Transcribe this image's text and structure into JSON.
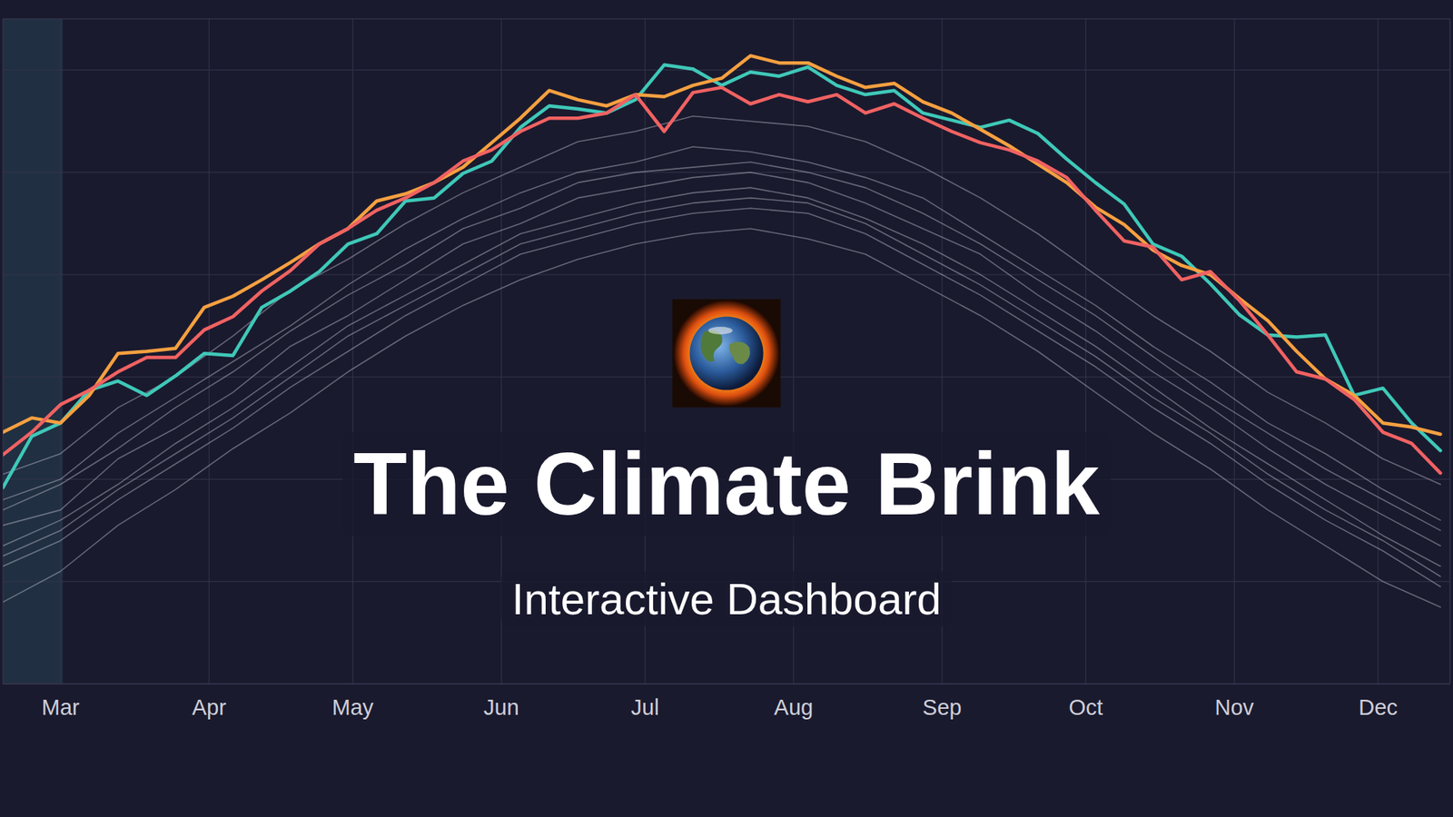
{
  "chart_data": {
    "type": "line",
    "title": "The Climate Brink",
    "subtitle": "Interactive Dashboard",
    "xlim": [
      48,
      350
    ],
    "xticks": [
      {
        "value": 60,
        "label": "Mar"
      },
      {
        "value": 91,
        "label": "Apr"
      },
      {
        "value": 121,
        "label": "May"
      },
      {
        "value": 152,
        "label": "Jun"
      },
      {
        "value": 182,
        "label": "Jul"
      },
      {
        "value": 213,
        "label": "Aug"
      },
      {
        "value": 244,
        "label": "Sep"
      },
      {
        "value": 274,
        "label": "Oct"
      },
      {
        "value": 305,
        "label": "Nov"
      },
      {
        "value": 335,
        "label": "Dec"
      }
    ],
    "ylim": [
      0,
      6.5
    ],
    "yticks": [
      0,
      1,
      2,
      3,
      4,
      5,
      6
    ],
    "grid": true,
    "tick_labels": "x",
    "series": [
      {
        "color": "#d9d9e6",
        "x": [
          48,
          60,
          72,
          84,
          96,
          108,
          120,
          132,
          144,
          156,
          168,
          180,
          192,
          204,
          216,
          228,
          240,
          252,
          264,
          276,
          288,
          300,
          312,
          324,
          336,
          348
        ],
        "values": [
          2.05,
          2.25,
          2.7,
          3.0,
          3.4,
          3.85,
          4.15,
          4.5,
          4.8,
          5.05,
          5.3,
          5.4,
          5.55,
          5.5,
          5.45,
          5.3,
          5.05,
          4.75,
          4.4,
          4.0,
          3.6,
          3.25,
          2.85,
          2.55,
          2.2,
          1.95
        ]
      },
      {
        "color": "#d9d9e6",
        "x": [
          48,
          60,
          72,
          84,
          96,
          108,
          120,
          132,
          144,
          156,
          168,
          180,
          192,
          204,
          216,
          228,
          240,
          252,
          264,
          276,
          288,
          300,
          312,
          324,
          336,
          348
        ],
        "values": [
          1.8,
          2.0,
          2.45,
          2.8,
          3.15,
          3.5,
          3.9,
          4.25,
          4.55,
          4.8,
          5.0,
          5.1,
          5.25,
          5.2,
          5.1,
          4.95,
          4.75,
          4.4,
          4.05,
          3.7,
          3.3,
          2.95,
          2.55,
          2.25,
          1.9,
          1.6
        ]
      },
      {
        "color": "#d9d9e6",
        "x": [
          48,
          60,
          72,
          84,
          96,
          108,
          120,
          132,
          144,
          156,
          168,
          180,
          192,
          204,
          216,
          228,
          240,
          252,
          264,
          276,
          288,
          300,
          312,
          324,
          336,
          348
        ],
        "values": [
          1.55,
          1.7,
          2.2,
          2.5,
          2.85,
          3.3,
          3.6,
          3.95,
          4.3,
          4.5,
          4.75,
          4.85,
          4.95,
          5.0,
          4.9,
          4.7,
          4.45,
          4.2,
          3.8,
          3.45,
          3.05,
          2.7,
          2.3,
          1.95,
          1.65,
          1.35
        ]
      },
      {
        "color": "#d9d9e6",
        "x": [
          48,
          60,
          72,
          84,
          96,
          108,
          120,
          132,
          144,
          156,
          168,
          180,
          192,
          204,
          216,
          228,
          240,
          252,
          264,
          276,
          288,
          300,
          312,
          324,
          336,
          348
        ],
        "values": [
          1.35,
          1.6,
          1.95,
          2.35,
          2.7,
          3.1,
          3.5,
          3.8,
          4.1,
          4.4,
          4.55,
          4.7,
          4.8,
          4.85,
          4.75,
          4.55,
          4.3,
          4.0,
          3.65,
          3.3,
          2.9,
          2.5,
          2.15,
          1.8,
          1.45,
          1.15
        ]
      },
      {
        "color": "#d9d9e6",
        "x": [
          48,
          60,
          72,
          84,
          96,
          108,
          120,
          132,
          144,
          156,
          168,
          180,
          192,
          204,
          216,
          228,
          240,
          252,
          264,
          276,
          288,
          300,
          312,
          324,
          336,
          348
        ],
        "values": [
          1.15,
          1.4,
          1.8,
          2.15,
          2.5,
          2.9,
          3.25,
          3.6,
          3.9,
          4.2,
          4.35,
          4.5,
          4.6,
          4.65,
          4.6,
          4.4,
          4.1,
          3.8,
          3.45,
          3.1,
          2.7,
          2.35,
          1.95,
          1.6,
          1.3,
          0.95
        ]
      },
      {
        "color": "#d9d9e6",
        "x": [
          48,
          60,
          72,
          84,
          96,
          108,
          120,
          132,
          144,
          156,
          168,
          180,
          192,
          204,
          216,
          228,
          240,
          252,
          264,
          276,
          288,
          300,
          312,
          324,
          336,
          348
        ],
        "values": [
          0.8,
          1.1,
          1.55,
          1.9,
          2.3,
          2.65,
          3.05,
          3.4,
          3.7,
          3.95,
          4.15,
          4.3,
          4.4,
          4.45,
          4.35,
          4.2,
          3.9,
          3.6,
          3.25,
          2.85,
          2.45,
          2.1,
          1.7,
          1.35,
          1.0,
          0.75
        ]
      },
      {
        "color": "#d9d9e6",
        "x": [
          48,
          60,
          72,
          84,
          96,
          108,
          120,
          132,
          144,
          156,
          168,
          180,
          192,
          204,
          216,
          228,
          240,
          252,
          264,
          276,
          288,
          300,
          312,
          324,
          336,
          348
        ],
        "values": [
          1.7,
          1.95,
          2.3,
          2.7,
          3.05,
          3.45,
          3.8,
          4.1,
          4.45,
          4.65,
          4.9,
          5.0,
          5.05,
          5.1,
          5.0,
          4.85,
          4.6,
          4.3,
          3.95,
          3.6,
          3.2,
          2.8,
          2.45,
          2.1,
          1.8,
          1.5
        ]
      },
      {
        "color": "#d9d9e6",
        "x": [
          48,
          60,
          72,
          84,
          96,
          108,
          120,
          132,
          144,
          156,
          168,
          180,
          192,
          204,
          216,
          228,
          240,
          252,
          264,
          276,
          288,
          300,
          312,
          324,
          336,
          348
        ],
        "values": [
          1.25,
          1.5,
          1.9,
          2.25,
          2.6,
          3.0,
          3.4,
          3.7,
          4.0,
          4.3,
          4.45,
          4.6,
          4.7,
          4.75,
          4.7,
          4.5,
          4.2,
          3.9,
          3.55,
          3.2,
          2.8,
          2.45,
          2.05,
          1.7,
          1.4,
          1.05
        ]
      },
      {
        "color": "#3fc8b8",
        "x": [
          48,
          54,
          60,
          66,
          72,
          78,
          84,
          90,
          96,
          102,
          108,
          114,
          120,
          126,
          132,
          138,
          144,
          150,
          156,
          162,
          168,
          174,
          180,
          186,
          192,
          198,
          204,
          210,
          216,
          222,
          228,
          234,
          240,
          246,
          252,
          258,
          264,
          270,
          276,
          282,
          288,
          294,
          300,
          306,
          312,
          318,
          324,
          330,
          336,
          342,
          348
        ],
        "values": [
          1.92,
          2.42,
          2.55,
          2.87,
          2.96,
          2.82,
          3.01,
          3.23,
          3.21,
          3.68,
          3.84,
          4.03,
          4.3,
          4.4,
          4.72,
          4.75,
          4.99,
          5.11,
          5.44,
          5.65,
          5.62,
          5.58,
          5.71,
          6.05,
          6.01,
          5.85,
          5.98,
          5.94,
          6.03,
          5.85,
          5.76,
          5.8,
          5.58,
          5.51,
          5.44,
          5.51,
          5.38,
          5.13,
          4.9,
          4.69,
          4.3,
          4.18,
          3.91,
          3.61,
          3.41,
          3.39,
          3.41,
          2.82,
          2.89,
          2.55,
          2.28
        ]
      },
      {
        "color": "#f5a040",
        "x": [
          48,
          54,
          60,
          66,
          72,
          78,
          84,
          90,
          96,
          102,
          108,
          114,
          120,
          126,
          132,
          138,
          144,
          150,
          156,
          162,
          168,
          174,
          180,
          186,
          192,
          198,
          204,
          210,
          216,
          222,
          228,
          234,
          240,
          246,
          252,
          258,
          264,
          270,
          276,
          282,
          288,
          294,
          300,
          306,
          312,
          318,
          324,
          330,
          336,
          342,
          348
        ],
        "values": [
          2.46,
          2.6,
          2.55,
          2.82,
          3.23,
          3.25,
          3.28,
          3.68,
          3.79,
          3.95,
          4.12,
          4.3,
          4.45,
          4.72,
          4.79,
          4.9,
          5.05,
          5.29,
          5.53,
          5.8,
          5.71,
          5.65,
          5.76,
          5.74,
          5.85,
          5.92,
          6.14,
          6.07,
          6.07,
          5.94,
          5.83,
          5.87,
          5.69,
          5.58,
          5.42,
          5.26,
          5.08,
          4.9,
          4.66,
          4.49,
          4.24,
          4.09,
          4.0,
          3.77,
          3.55,
          3.25,
          2.98,
          2.82,
          2.55,
          2.51,
          2.44
        ]
      },
      {
        "color": "#f06262",
        "x": [
          48,
          54,
          60,
          66,
          72,
          78,
          84,
          90,
          96,
          102,
          108,
          114,
          120,
          126,
          132,
          138,
          144,
          150,
          156,
          162,
          168,
          174,
          180,
          186,
          192,
          198,
          204,
          210,
          216,
          222,
          228,
          234,
          240,
          246,
          252,
          258,
          264,
          270,
          276,
          282,
          288,
          294,
          300,
          306,
          312,
          318,
          324,
          330,
          336,
          342,
          348
        ],
        "values": [
          2.24,
          2.46,
          2.73,
          2.87,
          3.05,
          3.19,
          3.19,
          3.46,
          3.59,
          3.84,
          4.04,
          4.3,
          4.45,
          4.63,
          4.75,
          4.9,
          5.11,
          5.22,
          5.4,
          5.53,
          5.53,
          5.58,
          5.76,
          5.4,
          5.78,
          5.83,
          5.67,
          5.76,
          5.69,
          5.76,
          5.58,
          5.67,
          5.53,
          5.4,
          5.29,
          5.22,
          5.11,
          4.95,
          4.63,
          4.33,
          4.27,
          3.95,
          4.03,
          3.75,
          3.41,
          3.05,
          2.98,
          2.78,
          2.46,
          2.35,
          2.06
        ]
      }
    ]
  }
}
